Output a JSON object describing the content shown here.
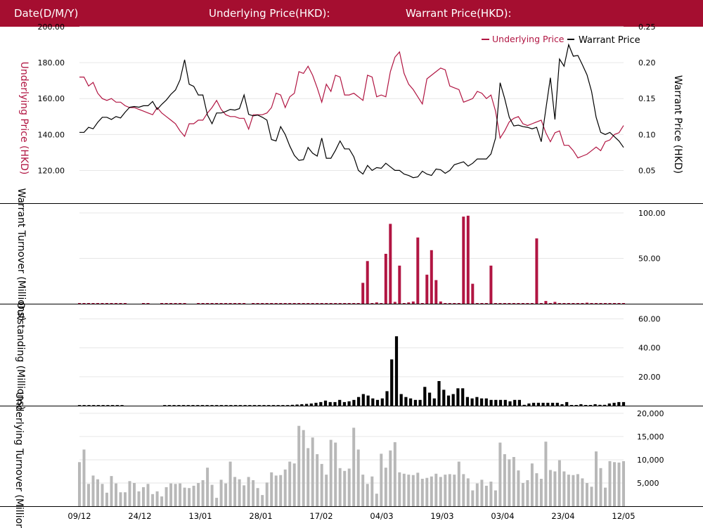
{
  "header": {
    "date_label": "Date(D/M/Y)",
    "underlying_label": "Underlying Price(HKD):",
    "warrant_label": "Warrant Price(HKD):"
  },
  "colors": {
    "brand": "#a50e30",
    "underlying": "#b11542",
    "warrant": "#000000",
    "outstanding": "#000000",
    "underlying_turnover": "#b8b8b8",
    "grid": "#e6e6e6"
  },
  "x_tick_labels": [
    "09/12",
    "24/12",
    "13/01",
    "28/01",
    "17/02",
    "04/03",
    "19/03",
    "03/04",
    "23/04",
    "12/05"
  ],
  "chart_data": [
    {
      "type": "line",
      "legend": {
        "placement": "top-right",
        "underlying": "Underlying Price",
        "warrant": "Warrant Price"
      },
      "ylabel_left": "Underlying Price (HKD)",
      "ylabel_right": "Warrant  Price (HKD)",
      "ylim_left": [
        110,
        200
      ],
      "yticks_left": [
        "200.00",
        "180.00",
        "160.00",
        "140.00",
        "120.00"
      ],
      "ylim_right": [
        0.025,
        0.25
      ],
      "yticks_right": [
        "0.25",
        "0.20",
        "0.15",
        "0.10",
        "0.05"
      ],
      "grid": true,
      "series": [
        {
          "name": "Underlying Price",
          "axis": "left",
          "values": [
            172,
            172,
            167,
            169,
            163,
            160,
            159,
            160,
            158,
            158,
            156,
            155,
            155,
            154,
            153,
            152,
            151,
            155,
            152,
            150,
            148,
            146,
            142,
            139,
            146,
            146,
            148,
            148,
            152,
            155,
            159,
            154,
            151,
            150,
            150,
            149,
            149,
            143,
            151,
            151,
            151,
            152,
            155,
            163,
            162,
            155,
            161,
            163,
            175,
            174,
            178,
            173,
            166,
            158,
            168,
            164,
            173,
            172,
            162,
            162,
            163,
            161,
            159,
            173,
            172,
            161,
            162,
            161,
            175,
            183,
            186,
            174,
            168,
            165,
            161,
            157,
            171,
            173,
            175,
            177,
            176,
            167,
            166,
            165,
            158,
            159,
            160,
            164,
            163,
            160,
            162,
            153,
            138,
            142,
            147,
            149,
            150,
            146,
            145,
            146,
            147,
            148,
            141,
            136,
            141,
            142,
            134,
            134,
            131,
            127,
            128,
            129,
            131,
            133,
            131,
            136,
            137,
            140,
            141,
            145
          ]
        },
        {
          "name": "Warrant Price",
          "axis": "right",
          "values": [
            0.103,
            0.103,
            0.11,
            0.108,
            0.117,
            0.124,
            0.124,
            0.121,
            0.125,
            0.123,
            0.131,
            0.138,
            0.139,
            0.138,
            0.14,
            0.14,
            0.146,
            0.135,
            0.142,
            0.148,
            0.156,
            0.162,
            0.176,
            0.204,
            0.17,
            0.167,
            0.155,
            0.155,
            0.127,
            0.115,
            0.13,
            0.13,
            0.132,
            0.135,
            0.134,
            0.136,
            0.155,
            0.128,
            0.126,
            0.127,
            0.124,
            0.12,
            0.093,
            0.091,
            0.111,
            0.1,
            0.084,
            0.071,
            0.064,
            0.065,
            0.082,
            0.074,
            0.07,
            0.095,
            0.067,
            0.067,
            0.078,
            0.091,
            0.08,
            0.08,
            0.069,
            0.05,
            0.045,
            0.057,
            0.05,
            0.054,
            0.053,
            0.06,
            0.055,
            0.05,
            0.05,
            0.045,
            0.043,
            0.04,
            0.041,
            0.049,
            0.045,
            0.043,
            0.052,
            0.051,
            0.046,
            0.05,
            0.058,
            0.06,
            0.062,
            0.056,
            0.06,
            0.066,
            0.066,
            0.066,
            0.073,
            0.095,
            0.172,
            0.15,
            0.124,
            0.112,
            0.113,
            0.111,
            0.11,
            0.108,
            0.11,
            0.09,
            0.135,
            0.179,
            0.121,
            0.205,
            0.195,
            0.225,
            0.209,
            0.21,
            0.197,
            0.183,
            0.16,
            0.124,
            0.103,
            0.1,
            0.103,
            0.097,
            0.091,
            0.082
          ]
        }
      ]
    },
    {
      "type": "bar",
      "ylabel": "Warrant  Turnover (Millions)",
      "ylim": [
        0,
        110
      ],
      "yticks": [
        "100.00",
        "50.00"
      ],
      "series": [
        {
          "name": "Warrant Turnover",
          "values": [
            0.8,
            0.8,
            0.8,
            0.8,
            0.8,
            0.8,
            0.8,
            0.8,
            0.8,
            0.8,
            0.8,
            0,
            0,
            0,
            0.8,
            0.8,
            0,
            0,
            0.8,
            0.8,
            0.8,
            0.8,
            0.8,
            0.8,
            0,
            0,
            0.8,
            0.8,
            0.8,
            0.8,
            0.8,
            0.8,
            0.8,
            0.8,
            0.8,
            0.8,
            0.8,
            0,
            0.8,
            0.8,
            0.8,
            0.8,
            0.8,
            0.8,
            0.8,
            0.8,
            0.8,
            0.8,
            0.8,
            0.8,
            0.8,
            0.8,
            0.8,
            0.8,
            0.8,
            0.8,
            0.8,
            0.8,
            0.8,
            0.8,
            0.8,
            0.8,
            23,
            47,
            0.8,
            1.5,
            0.8,
            55,
            88,
            2,
            42,
            0.8,
            1.5,
            2.5,
            73,
            0.8,
            32,
            59,
            26,
            2.5,
            0.8,
            0.8,
            0.8,
            0.8,
            96,
            97,
            22,
            0.8,
            0.8,
            0.8,
            42,
            0.8,
            0.8,
            0.8,
            0.8,
            0.8,
            0.8,
            0.8,
            0.8,
            0.8,
            72,
            0.8,
            3,
            0.8,
            2,
            0.8,
            0.8,
            0.8,
            0.8,
            0.8,
            0.8,
            1.2,
            0.8,
            0.8,
            0.8,
            0.8,
            0.8,
            0.8,
            0.8,
            0.8
          ]
        }
      ]
    },
    {
      "type": "bar",
      "ylabel": "Outstanding (Millions)",
      "ylim": [
        0,
        70
      ],
      "yticks": [
        "60.00",
        "40.00",
        "20.00"
      ],
      "series": [
        {
          "name": "Outstanding",
          "values": [
            0.4,
            0.4,
            0.4,
            0.4,
            0.4,
            0.4,
            0.4,
            0.4,
            0.4,
            0.4,
            0,
            0,
            0,
            0,
            0,
            0,
            0,
            0,
            0.4,
            0.4,
            0.4,
            0.4,
            0.4,
            0.4,
            0.4,
            0.4,
            0.4,
            0.4,
            0.4,
            0.4,
            0.4,
            0.4,
            0.4,
            0.4,
            0.4,
            0.4,
            0.4,
            0.4,
            0.4,
            0.4,
            0.4,
            0.4,
            0.4,
            0.4,
            0.4,
            0.6,
            0.8,
            1,
            1.2,
            1.5,
            2,
            2.5,
            3.5,
            2.5,
            2.5,
            4,
            2.5,
            3,
            4,
            6,
            8,
            7,
            5,
            4,
            5,
            10,
            32,
            48,
            8,
            6,
            5,
            4,
            4,
            13,
            9,
            5,
            17,
            11,
            7,
            8,
            12,
            12,
            6,
            5,
            6,
            5,
            5,
            4,
            4,
            4,
            4,
            3,
            4,
            4,
            0.6,
            1.5,
            2,
            2,
            2,
            2,
            2,
            2,
            1,
            2.5,
            0.5,
            0.5,
            1,
            0.5,
            0.5,
            1,
            0.6,
            0.6,
            1.5,
            2,
            2.5,
            2.5
          ]
        }
      ]
    },
    {
      "type": "bar",
      "ylabel": "Underlying Turnover (Millions)",
      "ylim": [
        0,
        21500
      ],
      "yticks": [
        "20,000",
        "15,000",
        "10,000",
        "5,000"
      ],
      "series": [
        {
          "name": "Underlying Turnover",
          "values": [
            9500,
            12200,
            4800,
            6600,
            5800,
            4800,
            2900,
            6500,
            4900,
            3000,
            3000,
            5400,
            5000,
            3200,
            4100,
            4800,
            2600,
            3200,
            2100,
            4100,
            4900,
            4800,
            4900,
            4000,
            3900,
            4400,
            5000,
            5600,
            8300,
            4600,
            1800,
            5700,
            4900,
            9600,
            6300,
            5800,
            4500,
            6300,
            5600,
            3900,
            2400,
            5100,
            7300,
            6600,
            6700,
            7900,
            9600,
            9200,
            17300,
            16400,
            12500,
            14800,
            11200,
            9100,
            6800,
            14300,
            13700,
            8200,
            7600,
            8100,
            16900,
            12200,
            6800,
            4800,
            6400,
            2700,
            11300,
            8300,
            12000,
            13800,
            7300,
            7000,
            6800,
            6700,
            7200,
            5900,
            6100,
            6400,
            7000,
            6300,
            6800,
            6900,
            6800,
            9600,
            6900,
            6000,
            3400,
            4900,
            5700,
            4400,
            5300,
            3400,
            13700,
            11200,
            10100,
            10600,
            7700,
            5000,
            5600,
            9200,
            7100,
            5900,
            13900,
            7800,
            7500,
            9900,
            7500,
            6800,
            6700,
            6900,
            6000,
            5000,
            4200,
            11800,
            8200,
            4000,
            9700,
            9500,
            9400,
            9700
          ]
        }
      ]
    }
  ]
}
